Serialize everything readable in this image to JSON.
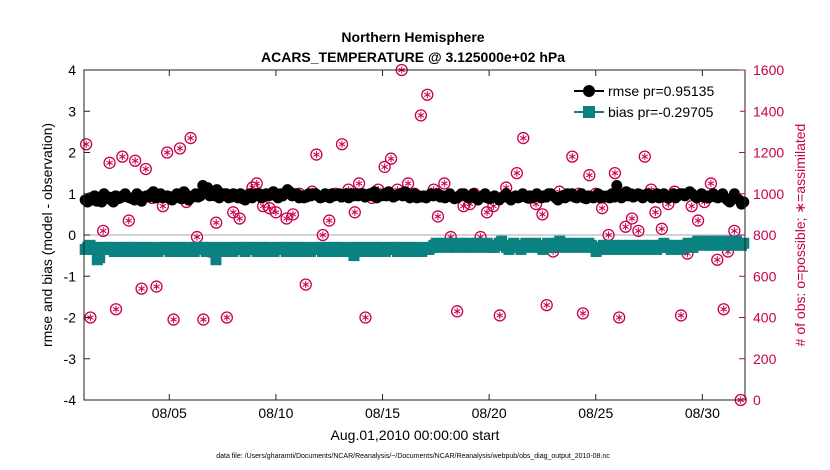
{
  "chart_data": {
    "type": "line",
    "title": "Northern Hemisphere",
    "subtitle": "ACARS_TEMPERATURE @ 3.125000e+02 hPa",
    "xlabel": "Aug.01,2010 00:00:00 start",
    "ylabel_left": "rmse and bias (model - observation)",
    "ylabel_right": "# of obs: o=possible; ∗=assimilated",
    "footnote": "data file: /Users/gharamti/Documents/NCAR/Reanalysis/~/Documents/NCAR/Reanalysis/webpub/obs_diag_output_2010-08.nc",
    "x_ticks": [
      5,
      10,
      15,
      20,
      25,
      30
    ],
    "x_tick_labels": [
      "08/05",
      "08/10",
      "08/15",
      "08/20",
      "08/25",
      "08/30"
    ],
    "xlim": [
      1,
      32
    ],
    "ylim_left": [
      -4,
      4
    ],
    "y_ticks_left": [
      -4,
      -3,
      -2,
      -1,
      0,
      1,
      2,
      3,
      4
    ],
    "y_tick_labels_left": [
      "-4",
      "-3",
      "-2",
      "-1",
      "0",
      "1",
      "2",
      "3",
      "4"
    ],
    "ylim_right": [
      0,
      1600
    ],
    "y_ticks_right": [
      0,
      200,
      400,
      600,
      800,
      1000,
      1200,
      1400,
      1600
    ],
    "y_tick_labels_right": [
      "0",
      "200",
      "400",
      "600",
      "800",
      "1000",
      "1200",
      "1400",
      "1600"
    ],
    "legend_position": "top-right",
    "series": [
      {
        "name": "rmse pr=0.95135",
        "axis": "left",
        "color": "#000000",
        "marker": "circle",
        "values": [
          0.85,
          0.8,
          0.9,
          0.85,
          0.95,
          0.82,
          0.88,
          0.8,
          1.0,
          0.9,
          0.92,
          0.85,
          0.8,
          0.95,
          0.88,
          0.9,
          0.95,
          1.0,
          0.92,
          0.9,
          0.88,
          0.85,
          1.0,
          0.95,
          0.82,
          0.9,
          0.95,
          0.92,
          1.0,
          1.05,
          0.9,
          0.95,
          1.0,
          0.9,
          0.92,
          0.95,
          0.88,
          0.85,
          0.95,
          1.0,
          0.9,
          0.88,
          1.05,
          0.98,
          0.85,
          0.9,
          0.95,
          1.0,
          0.92,
          0.95,
          1.2,
          1.1,
          1.15,
          0.95,
          1.0,
          0.95,
          1.1,
          0.9,
          0.95,
          1.0,
          1.0,
          0.9,
          0.92,
          1.0,
          0.95,
          0.9,
          1.0,
          0.88,
          0.85,
          0.95,
          1.0,
          0.9,
          0.95,
          1.0,
          1.0,
          0.9,
          0.95,
          1.0,
          0.95,
          0.98,
          1.05,
          0.95,
          0.9,
          1.0,
          0.95,
          1.0,
          1.1,
          1.05,
          0.95,
          1.0,
          1.0,
          0.9,
          0.95,
          0.9,
          0.92,
          1.0,
          0.95,
          1.0,
          1.0,
          0.95,
          0.9,
          0.92,
          1.0,
          0.95,
          0.9,
          1.0,
          0.95,
          0.98,
          1.0,
          0.92,
          0.95,
          1.0,
          0.9,
          1.0,
          0.95,
          1.0,
          0.95,
          0.98,
          1.0,
          0.92,
          0.95,
          1.0,
          0.95,
          1.05,
          0.9,
          0.95,
          0.95,
          1.0,
          0.95,
          1.05,
          1.0,
          0.92,
          0.95,
          0.98,
          1.0,
          0.95,
          1.05,
          1.0,
          0.9,
          0.95,
          1.0,
          0.9,
          0.95,
          0.92,
          0.95,
          0.9,
          0.95,
          1.0,
          0.95,
          0.98,
          1.0,
          0.92,
          0.95,
          0.9,
          0.95,
          1.0,
          0.92,
          0.88,
          0.9,
          0.95,
          1.0,
          1.0,
          0.95,
          0.9,
          0.92,
          1.0,
          0.9,
          0.85,
          0.9,
          0.95,
          1.0,
          0.9,
          0.88,
          0.92,
          0.95,
          0.9,
          0.85,
          0.9,
          0.95,
          1.0,
          0.9,
          0.85,
          0.9,
          0.95,
          0.9,
          0.92,
          1.0,
          0.95,
          0.9,
          0.95,
          0.9,
          0.92,
          1.0,
          0.95,
          0.9,
          0.95,
          0.92,
          1.0,
          1.0,
          0.95,
          0.9,
          0.85,
          0.92,
          0.95,
          0.9,
          1.0,
          0.95,
          1.0,
          0.92,
          0.9,
          0.95,
          1.0,
          0.9,
          0.88,
          0.95,
          0.92,
          0.9,
          0.95,
          1.0,
          0.9,
          0.95,
          0.92,
          0.95,
          0.9,
          1.0,
          0.92,
          1.2,
          0.95,
          0.9,
          1.0,
          1.05,
          0.95,
          1.0,
          0.92,
          0.95,
          1.0,
          0.98,
          0.9,
          0.95,
          1.0,
          0.95,
          0.9,
          0.95,
          1.0,
          0.9,
          0.95,
          1.0,
          0.92,
          0.9,
          0.95,
          1.0,
          0.9,
          0.95,
          1.0,
          1.0,
          0.95,
          1.0,
          1.05,
          1.0,
          0.95,
          0.9,
          0.95,
          1.0,
          0.92,
          0.95,
          0.9,
          0.95,
          1.0,
          0.92,
          0.9,
          0.95,
          1.0,
          0.9,
          0.85,
          0.8,
          0.9,
          1.0,
          0.9,
          0.85,
          0.75,
          0.8
        ]
      },
      {
        "name": "bias pr=-0.29705",
        "axis": "left",
        "color": "#0a8282",
        "marker": "square",
        "values": [
          -0.35,
          -0.3,
          -0.25,
          -0.3,
          -0.35,
          -0.6,
          -0.55,
          -0.3,
          -0.35,
          -0.3,
          -0.35,
          -0.3,
          -0.4,
          -0.35,
          -0.3,
          -0.35,
          -0.4,
          -0.3,
          -0.35,
          -0.3,
          -0.4,
          -0.35,
          -0.3,
          -0.4,
          -0.35,
          -0.3,
          -0.35,
          -0.4,
          -0.3,
          -0.35,
          -0.4,
          -0.35,
          -0.3,
          -0.35,
          -0.3,
          -0.4,
          -0.35,
          -0.3,
          -0.4,
          -0.35,
          -0.3,
          -0.35,
          -0.4,
          -0.3,
          -0.35,
          -0.4,
          -0.35,
          -0.3,
          -0.35,
          -0.3,
          -0.4,
          -0.35,
          -0.3,
          -0.4,
          -0.6,
          -0.35,
          -0.3,
          -0.35,
          -0.4,
          -0.3,
          -0.35,
          -0.4,
          -0.35,
          -0.3,
          -0.35,
          -0.3,
          -0.4,
          -0.35,
          -0.3,
          -0.35,
          -0.3,
          -0.4,
          -0.35,
          -0.3,
          -0.35,
          -0.4,
          -0.3,
          -0.35,
          -0.4,
          -0.35,
          -0.3,
          -0.35,
          -0.3,
          -0.4,
          -0.35,
          -0.3,
          -0.4,
          -0.35,
          -0.3,
          -0.35,
          -0.4,
          -0.3,
          -0.35,
          -0.4,
          -0.35,
          -0.3,
          -0.35,
          -0.3,
          -0.4,
          -0.35,
          -0.3,
          -0.4,
          -0.35,
          -0.3,
          -0.35,
          -0.4,
          -0.3,
          -0.35,
          -0.4,
          -0.35,
          -0.3,
          -0.5,
          -0.35,
          -0.3,
          -0.4,
          -0.35,
          -0.3,
          -0.4,
          -0.35,
          -0.3,
          -0.35,
          -0.4,
          -0.3,
          -0.35,
          -0.4,
          -0.35,
          -0.3,
          -0.35,
          -0.3,
          -0.4,
          -0.35,
          -0.3,
          -0.4,
          -0.35,
          -0.3,
          -0.35,
          -0.4,
          -0.3,
          -0.35,
          -0.4,
          -0.35,
          -0.3,
          -0.35,
          -0.3,
          -0.25,
          -0.2,
          -0.3,
          -0.25,
          -0.2,
          -0.25,
          -0.3,
          -0.2,
          -0.25,
          -0.3,
          -0.25,
          -0.2,
          -0.25,
          -0.3,
          -0.2,
          -0.25,
          -0.3,
          -0.25,
          -0.2,
          -0.25,
          -0.3,
          -0.25,
          -0.2,
          -0.25,
          -0.3,
          -0.3,
          -0.25,
          -0.2,
          -0.15,
          -0.25,
          -0.3,
          -0.35,
          -0.25,
          -0.2,
          -0.25,
          -0.3,
          -0.35,
          -0.25,
          -0.2,
          -0.25,
          -0.3,
          -0.25,
          -0.2,
          -0.25,
          -0.3,
          -0.35,
          -0.25,
          -0.2,
          -0.25,
          -0.3,
          -0.25,
          -0.2,
          -0.15,
          -0.25,
          -0.3,
          -0.25,
          -0.2,
          -0.25,
          -0.3,
          -0.25,
          -0.2,
          -0.25,
          -0.3,
          -0.25,
          -0.2,
          -0.25,
          -0.3,
          -0.4,
          -0.35,
          -0.3,
          -0.25,
          -0.3,
          -0.35,
          -0.3,
          -0.25,
          -0.3,
          -0.35,
          -0.3,
          -0.25,
          -0.3,
          -0.35,
          -0.3,
          -0.25,
          -0.3,
          -0.35,
          -0.3,
          -0.25,
          -0.3,
          -0.35,
          -0.3,
          -0.25,
          -0.3,
          -0.35,
          -0.3,
          -0.25,
          -0.2,
          -0.25,
          -0.3,
          -0.35,
          -0.3,
          -0.25,
          -0.3,
          -0.35,
          -0.3,
          -0.25,
          -0.2,
          -0.25,
          -0.3,
          -0.2,
          -0.15,
          -0.2,
          -0.25,
          -0.2,
          -0.15,
          -0.2,
          -0.25,
          -0.2,
          -0.15,
          -0.2,
          -0.25,
          -0.2,
          -0.15,
          -0.2,
          -0.25,
          -0.2,
          -0.15,
          -0.2,
          -0.25,
          -0.2
        ]
      },
      {
        "name": "",
        "axis": "right",
        "color": "#c8004f",
        "marker": "circle-star",
        "x": [
          1.1,
          1.3,
          1.6,
          1.9,
          2.2,
          2.5,
          2.8,
          3.1,
          3.4,
          3.7,
          3.9,
          4.2,
          4.4,
          4.7,
          4.9,
          5.2,
          5.5,
          5.8,
          6.0,
          6.3,
          6.6,
          6.9,
          7.2,
          7.4,
          7.7,
          8.0,
          8.3,
          8.6,
          8.9,
          9.1,
          9.4,
          9.7,
          10.0,
          10.2,
          10.5,
          10.8,
          11.1,
          11.4,
          11.7,
          11.9,
          12.2,
          12.5,
          12.8,
          13.1,
          13.4,
          13.7,
          13.9,
          14.2,
          14.5,
          14.8,
          15.1,
          15.4,
          15.7,
          15.9,
          16.2,
          16.5,
          16.8,
          17.1,
          17.4,
          17.6,
          17.9,
          18.2,
          18.5,
          18.8,
          19.1,
          19.3,
          19.6,
          19.9,
          20.2,
          20.5,
          20.8,
          21.0,
          21.3,
          21.6,
          21.9,
          22.2,
          22.5,
          22.7,
          23.0,
          23.3,
          23.6,
          23.9,
          24.2,
          24.4,
          24.7,
          25.0,
          25.3,
          25.6,
          25.9,
          26.1,
          26.4,
          26.7,
          27.0,
          27.3,
          27.6,
          27.8,
          28.1,
          28.4,
          28.7,
          29.0,
          29.3,
          29.5,
          29.8,
          30.1,
          30.4,
          30.7,
          31.0,
          31.2,
          31.5,
          31.8
        ],
        "values": [
          1240,
          400,
          730,
          820,
          1150,
          440,
          1180,
          870,
          1160,
          540,
          1120,
          980,
          550,
          940,
          1200,
          390,
          1220,
          960,
          1270,
          790,
          390,
          720,
          860,
          1000,
          400,
          910,
          880,
          990,
          1030,
          1050,
          940,
          930,
          910,
          990,
          880,
          900,
          1000,
          560,
          1010,
          1190,
          800,
          870,
          1000,
          1240,
          1020,
          910,
          1050,
          400,
          980,
          1020,
          1130,
          1170,
          1020,
          1600,
          1050,
          1000,
          1380,
          1480,
          1020,
          890,
          1050,
          790,
          430,
          940,
          950,
          1000,
          790,
          910,
          940,
          410,
          1030,
          980,
          1100,
          1270,
          980,
          950,
          900,
          460,
          720,
          1010,
          990,
          1180,
          1000,
          420,
          1090,
          1000,
          930,
          800,
          1100,
          400,
          840,
          880,
          820,
          1180,
          1020,
          910,
          830,
          950,
          1010,
          410,
          710,
          940,
          870,
          960,
          1050,
          680,
          440,
          720,
          820,
          0
        ]
      }
    ]
  }
}
